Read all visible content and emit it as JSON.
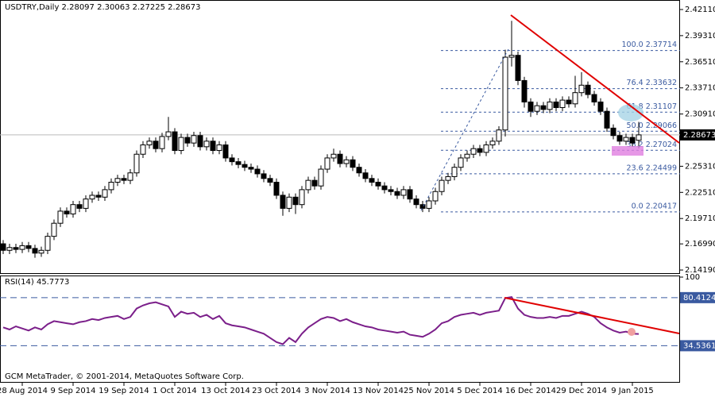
{
  "chart_data": [
    {
      "type": "candlestick",
      "title": "USDTRY,Daily  2.28097 2.30063 2.27225 2.28673",
      "categories": [
        null,
        null,
        null,
        "28 Aug 2014",
        null,
        null,
        null,
        null,
        null,
        null,
        null,
        "9 Sep 2014",
        null,
        null,
        null,
        null,
        null,
        null,
        null,
        "19 Sep 2014",
        null,
        null,
        null,
        null,
        null,
        null,
        null,
        "1 Oct 2014",
        null,
        null,
        null,
        null,
        null,
        null,
        null,
        "13 Oct 2014",
        null,
        null,
        null,
        null,
        null,
        null,
        null,
        "23 Oct 2014",
        null,
        null,
        null,
        null,
        null,
        null,
        null,
        "3 Nov 2014",
        null,
        null,
        null,
        null,
        null,
        null,
        null,
        "13 Nov 2014",
        null,
        null,
        null,
        null,
        null,
        null,
        null,
        "25 Nov 2014",
        null,
        null,
        null,
        null,
        null,
        null,
        null,
        "5 Dec 2014",
        null,
        null,
        null,
        null,
        null,
        null,
        null,
        "16 Dec 2014",
        null,
        null,
        null,
        null,
        null,
        null,
        null,
        "29 Dec 2014",
        null,
        null,
        null,
        null,
        null,
        null,
        null,
        "9 Jan 2015",
        null
      ],
      "open": [
        2.17,
        2.163,
        2.166,
        2.164,
        2.168,
        2.165,
        2.16,
        2.163,
        2.178,
        2.192,
        2.205,
        2.202,
        2.212,
        2.208,
        2.218,
        2.222,
        2.22,
        2.228,
        2.236,
        2.24,
        2.238,
        2.246,
        2.266,
        2.276,
        2.28,
        2.272,
        2.285,
        2.29,
        2.27,
        2.284,
        2.278,
        2.286,
        2.274,
        2.28,
        2.27,
        2.276,
        2.262,
        2.258,
        2.255,
        2.252,
        2.25,
        2.245,
        2.24,
        2.236,
        2.222,
        2.208,
        2.22,
        2.212,
        2.228,
        2.238,
        2.232,
        2.25,
        2.262,
        2.266,
        2.256,
        2.26,
        2.252,
        2.246,
        2.24,
        2.236,
        2.232,
        2.228,
        2.226,
        2.222,
        2.228,
        2.218,
        2.212,
        2.208,
        2.216,
        2.226,
        2.238,
        2.242,
        2.252,
        2.262,
        2.266,
        2.272,
        2.268,
        2.276,
        2.28,
        2.292,
        2.37,
        2.372,
        2.345,
        2.322,
        2.312,
        2.318,
        2.314,
        2.322,
        2.316,
        2.324,
        2.32,
        2.332,
        2.34,
        2.33,
        2.322,
        2.312,
        2.294,
        2.286,
        2.28,
        2.284,
        2.28097
      ],
      "high": [
        2.174,
        2.17,
        2.17,
        2.172,
        2.172,
        2.169,
        2.167,
        2.182,
        2.196,
        2.209,
        2.209,
        2.216,
        2.216,
        2.222,
        2.226,
        2.226,
        2.232,
        2.24,
        2.244,
        2.244,
        2.25,
        2.27,
        2.28,
        2.284,
        2.284,
        2.289,
        2.306,
        2.294,
        2.288,
        2.288,
        2.29,
        2.29,
        2.284,
        2.284,
        2.28,
        2.28,
        2.266,
        2.262,
        2.259,
        2.256,
        2.254,
        2.249,
        2.244,
        2.24,
        2.226,
        2.224,
        2.224,
        2.232,
        2.242,
        2.242,
        2.254,
        2.266,
        2.272,
        2.27,
        2.264,
        2.264,
        2.256,
        2.25,
        2.244,
        2.24,
        2.236,
        2.232,
        2.23,
        2.232,
        2.232,
        2.222,
        2.216,
        2.22,
        2.23,
        2.242,
        2.246,
        2.256,
        2.266,
        2.27,
        2.276,
        2.276,
        2.28,
        2.284,
        2.296,
        2.378,
        2.409,
        2.376,
        2.349,
        2.326,
        2.322,
        2.322,
        2.326,
        2.326,
        2.328,
        2.328,
        2.35,
        2.354,
        2.344,
        2.334,
        2.326,
        2.316,
        2.298,
        2.29,
        2.288,
        2.288,
        2.30063
      ],
      "low": [
        2.159,
        2.159,
        2.16,
        2.16,
        2.161,
        2.155,
        2.156,
        2.159,
        2.174,
        2.188,
        2.198,
        2.198,
        2.204,
        2.204,
        2.214,
        2.216,
        2.216,
        2.224,
        2.232,
        2.234,
        2.234,
        2.242,
        2.262,
        2.272,
        2.268,
        2.268,
        2.281,
        2.266,
        2.266,
        2.274,
        2.274,
        2.27,
        2.27,
        2.266,
        2.266,
        2.258,
        2.254,
        2.251,
        2.248,
        2.246,
        2.241,
        2.236,
        2.232,
        2.218,
        2.2,
        2.204,
        2.202,
        2.208,
        2.224,
        2.228,
        2.228,
        2.246,
        2.258,
        2.252,
        2.252,
        2.248,
        2.242,
        2.236,
        2.232,
        2.228,
        2.224,
        2.222,
        2.218,
        2.218,
        2.214,
        2.208,
        2.204,
        2.204,
        2.212,
        2.222,
        2.234,
        2.238,
        2.248,
        2.258,
        2.262,
        2.264,
        2.264,
        2.272,
        2.276,
        2.285,
        2.36,
        2.34,
        2.316,
        2.306,
        2.308,
        2.31,
        2.31,
        2.312,
        2.312,
        2.316,
        2.316,
        2.328,
        2.326,
        2.318,
        2.308,
        2.29,
        2.282,
        2.276,
        2.276,
        2.274,
        2.27225
      ],
      "close": [
        2.163,
        2.166,
        2.164,
        2.168,
        2.165,
        2.16,
        2.163,
        2.178,
        2.192,
        2.205,
        2.202,
        2.212,
        2.208,
        2.218,
        2.222,
        2.22,
        2.228,
        2.236,
        2.24,
        2.238,
        2.246,
        2.266,
        2.276,
        2.28,
        2.272,
        2.285,
        2.29,
        2.27,
        2.284,
        2.278,
        2.286,
        2.274,
        2.28,
        2.27,
        2.276,
        2.262,
        2.258,
        2.255,
        2.252,
        2.25,
        2.245,
        2.24,
        2.236,
        2.222,
        2.208,
        2.22,
        2.212,
        2.228,
        2.238,
        2.232,
        2.25,
        2.262,
        2.266,
        2.256,
        2.26,
        2.252,
        2.246,
        2.24,
        2.236,
        2.232,
        2.228,
        2.226,
        2.222,
        2.228,
        2.218,
        2.212,
        2.208,
        2.216,
        2.226,
        2.238,
        2.242,
        2.252,
        2.262,
        2.266,
        2.272,
        2.268,
        2.276,
        2.28,
        2.292,
        2.37,
        2.372,
        2.345,
        2.322,
        2.312,
        2.318,
        2.314,
        2.322,
        2.316,
        2.324,
        2.32,
        2.332,
        2.34,
        2.33,
        2.322,
        2.312,
        2.294,
        2.286,
        2.28,
        2.284,
        2.278,
        2.28673
      ],
      "ylim": [
        2.1377,
        2.4313
      ],
      "yticks": [
        {
          "value": 2.4211,
          "label": "2.42110"
        },
        {
          "value": 2.3931,
          "label": "2.39310"
        },
        {
          "value": 2.3651,
          "label": "2.36510"
        },
        {
          "value": 2.3371,
          "label": "2.33710"
        },
        {
          "value": 2.3091,
          "label": "2.30910"
        },
        {
          "value": 2.2531,
          "label": "2.25310"
        },
        {
          "value": 2.2251,
          "label": "2.22510"
        },
        {
          "value": 2.1971,
          "label": "2.19710"
        },
        {
          "value": 2.1699,
          "label": "2.16990"
        },
        {
          "value": 2.1419,
          "label": "2.14190"
        }
      ],
      "current_price": 2.28673,
      "fib_levels": [
        {
          "value": 2.37714,
          "label": "100.0 2.37714"
        },
        {
          "value": 2.33632,
          "label": "76.4 2.33632"
        },
        {
          "value": 2.31107,
          "label": "61.8 2.31107"
        },
        {
          "value": 2.29066,
          "label": "50.0 2.29066"
        },
        {
          "value": 2.27024,
          "label": "38.2 2.27024"
        },
        {
          "value": 2.24499,
          "label": "23.6 2.24499"
        },
        {
          "value": 2.20417,
          "label": "0.0 2.20417"
        }
      ],
      "footer": "GCM MetaTrader, © 2001-2014, MetaQuotes Software Corp."
    },
    {
      "type": "line",
      "title": "RSI(14) 45.7773",
      "color": "#7b1f8a",
      "values": [
        52,
        50,
        53,
        51,
        49,
        52,
        50,
        55,
        58,
        57,
        56,
        55,
        57,
        58,
        60,
        59,
        61,
        62,
        63,
        60,
        62,
        70,
        73,
        75,
        76,
        74,
        72,
        62,
        67,
        65,
        66,
        62,
        64,
        60,
        63,
        56,
        54,
        53,
        52,
        50,
        48,
        46,
        42,
        38,
        36,
        42,
        38,
        46,
        52,
        56,
        60,
        62,
        61,
        58,
        60,
        57,
        55,
        53,
        52,
        50,
        49,
        48,
        47,
        48,
        45,
        44,
        43,
        46,
        50,
        56,
        58,
        62,
        64,
        65,
        66,
        64,
        66,
        67,
        68,
        80,
        81,
        70,
        64,
        62,
        61,
        61,
        62,
        61,
        63,
        63,
        65,
        67,
        65,
        62,
        56,
        52,
        49,
        47,
        48,
        46,
        45.7773
      ],
      "ylim": [
        0,
        100
      ],
      "yticks": [
        100,
        80.4124,
        34.5361
      ]
    }
  ]
}
